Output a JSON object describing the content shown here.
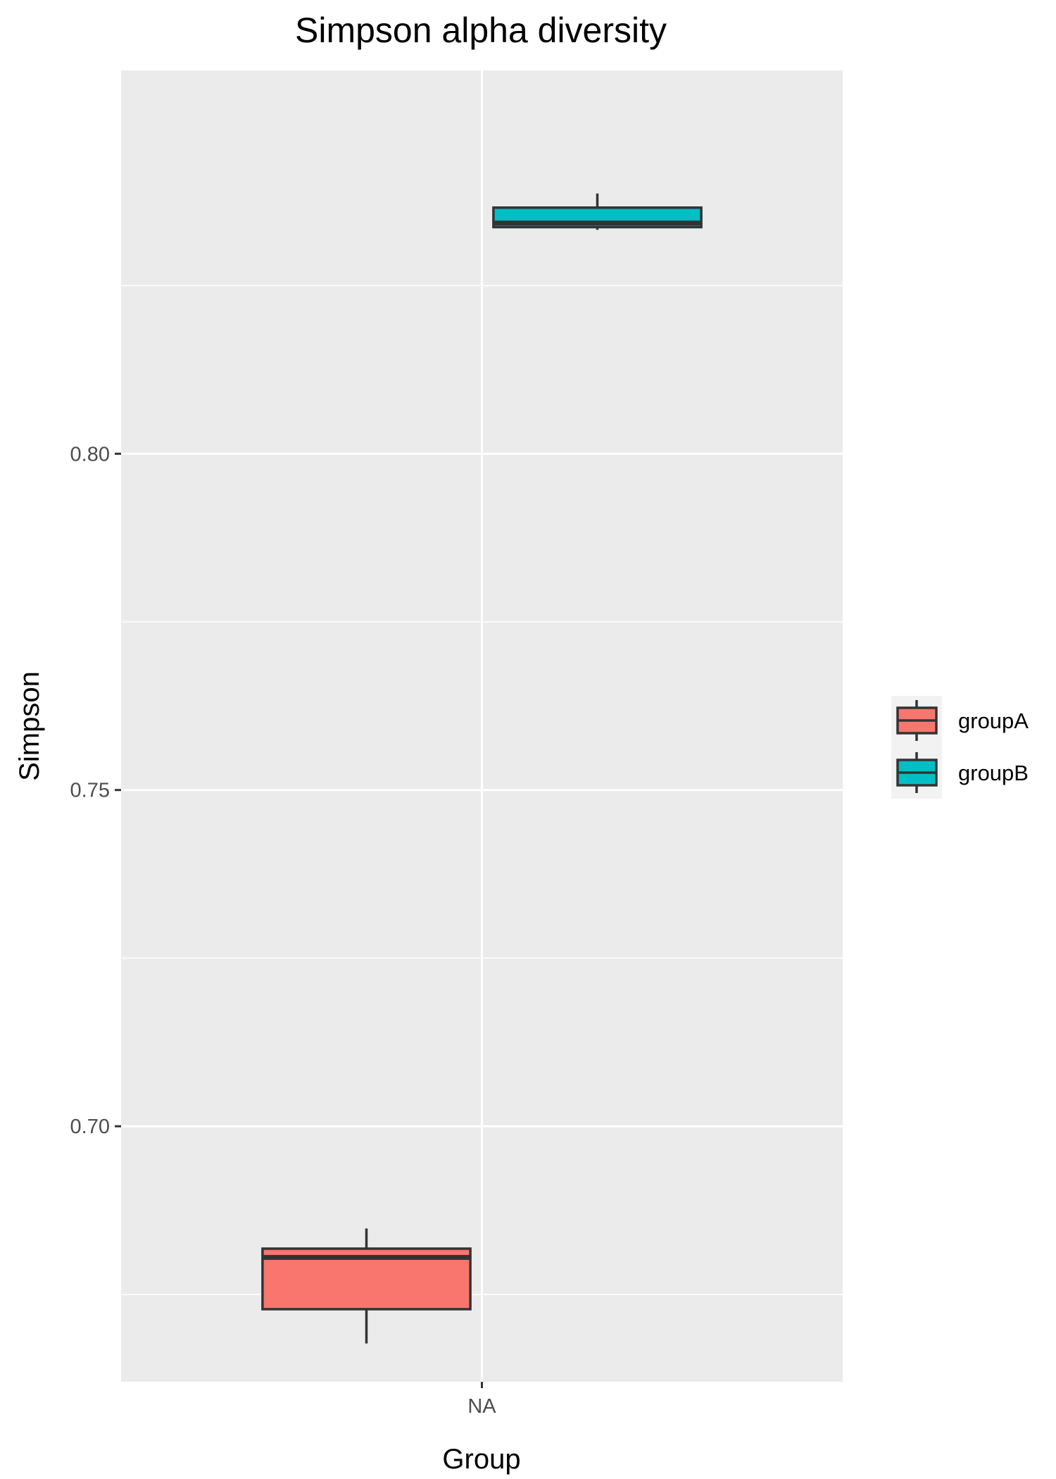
{
  "chart_data": {
    "type": "boxplot",
    "title": "Simpson alpha diversity",
    "xlabel": "Group",
    "ylabel": "Simpson",
    "categories": [
      "NA"
    ],
    "ylim": [
      0.662,
      0.857
    ],
    "yticks": [
      0.7,
      0.75,
      0.8
    ],
    "ytick_labels": [
      "0.70",
      "0.75",
      "0.80"
    ],
    "grid": true,
    "legend_position": "right",
    "series": [
      {
        "name": "groupA",
        "color": "#F8766D",
        "stats": {
          "min": 0.6677,
          "q1": 0.6728,
          "median": 0.6805,
          "q3": 0.6818,
          "max": 0.6848
        }
      },
      {
        "name": "groupB",
        "color": "#00BFC4",
        "stats": {
          "min": 0.8333,
          "q1": 0.8337,
          "median": 0.8343,
          "q3": 0.8366,
          "max": 0.8387
        }
      }
    ]
  }
}
